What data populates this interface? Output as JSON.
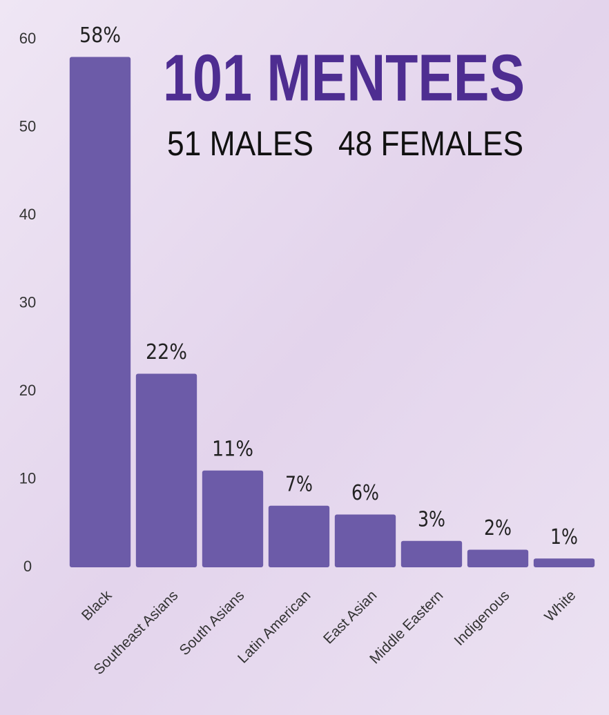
{
  "chart_data": {
    "type": "bar",
    "title": "101 MENTEES",
    "annotations": [
      "51 MALES",
      "48 FEMALES"
    ],
    "categories": [
      "Black",
      "Southeast Asians",
      "South Asians",
      "Latin American",
      "East Asian",
      "Middle Eastern",
      "Indigenous",
      "White"
    ],
    "values": [
      58,
      22,
      11,
      7,
      6,
      3,
      2,
      1
    ],
    "value_labels": [
      "58%",
      "22%",
      "11%",
      "7%",
      "6%",
      "3%",
      "2%",
      "1%"
    ],
    "color": "#6c5ba8",
    "ylim": [
      0,
      60
    ],
    "yticks": [
      0,
      10,
      20,
      30,
      40,
      50,
      60
    ],
    "grid": false
  }
}
